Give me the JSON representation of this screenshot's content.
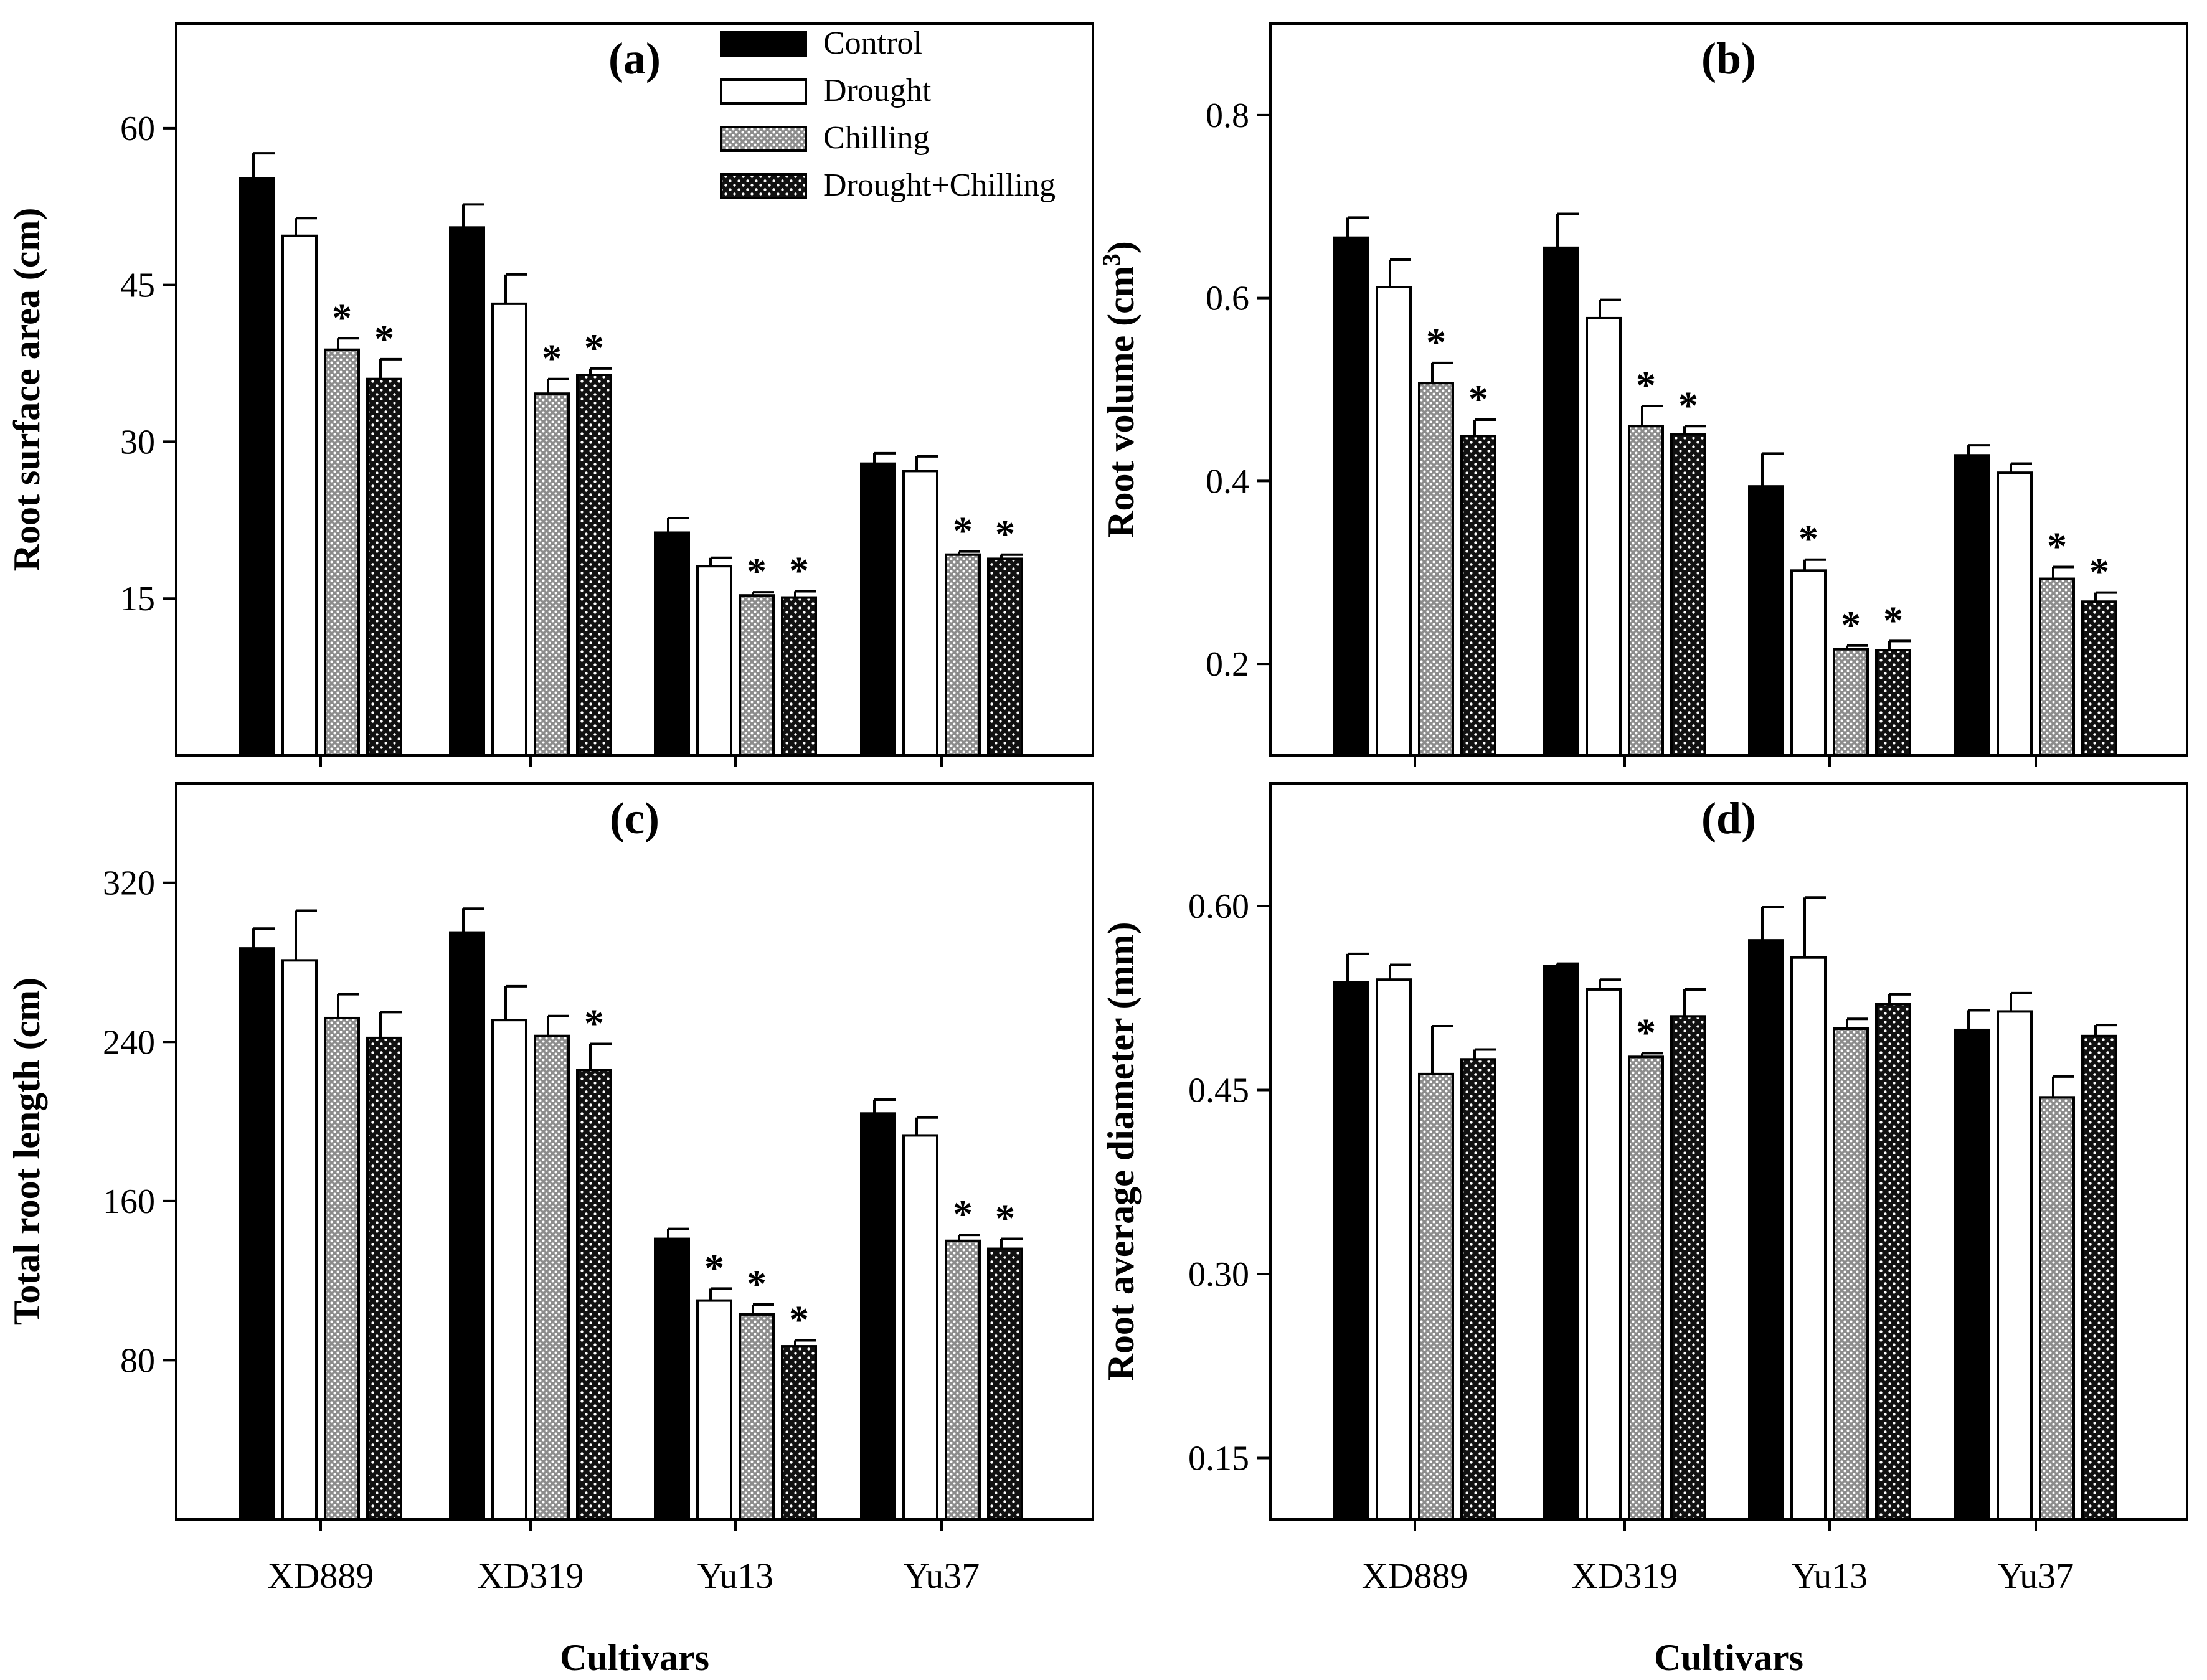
{
  "chart_data": [
    {
      "type": "bar",
      "panel_label": "(a)",
      "ylabel": "Root surface area (cm)",
      "xlabel": "",
      "ylim": [
        0,
        70
      ],
      "yticks": [
        15,
        30,
        45,
        60
      ],
      "ytick_labels": [
        "15",
        "30",
        "45",
        "60"
      ],
      "categories": [
        "XD889",
        "XD319",
        "Yu13",
        "Yu37"
      ],
      "series": [
        {
          "name": "Control",
          "values": [
            55.2,
            50.5,
            21.3,
            27.9
          ],
          "errors": [
            2.4,
            2.2,
            1.4,
            1.0
          ],
          "sig": [
            false,
            false,
            false,
            false
          ]
        },
        {
          "name": "Drought",
          "values": [
            49.7,
            43.2,
            18.1,
            27.2
          ],
          "errors": [
            1.7,
            2.8,
            0.8,
            1.4
          ],
          "sig": [
            false,
            false,
            false,
            false
          ]
        },
        {
          "name": "Chilling",
          "values": [
            38.8,
            34.6,
            15.3,
            19.2
          ],
          "errors": [
            1.1,
            1.4,
            0.3,
            0.3
          ],
          "sig": [
            true,
            true,
            true,
            true
          ]
        },
        {
          "name": "Drought+Chilling",
          "values": [
            36.0,
            36.4,
            15.1,
            18.8
          ],
          "errors": [
            1.9,
            0.6,
            0.6,
            0.4
          ],
          "sig": [
            true,
            true,
            true,
            true
          ]
        }
      ],
      "legend_location": "top"
    },
    {
      "type": "bar",
      "panel_label": "(b)",
      "ylabel": "Root volume (cm",
      "ylabel_sup": "3",
      "ylabel_end": ")",
      "xlabel": "",
      "ylim": [
        0.1,
        0.9
      ],
      "yticks": [
        0.2,
        0.4,
        0.6,
        0.8
      ],
      "ytick_labels": [
        "0.2",
        "0.4",
        "0.6",
        "0.8"
      ],
      "categories": [
        "XD889",
        "XD319",
        "Yu13",
        "Yu37"
      ],
      "series": [
        {
          "name": "Control",
          "values": [
            0.666,
            0.655,
            0.394,
            0.428
          ],
          "errors": [
            0.022,
            0.037,
            0.036,
            0.011
          ],
          "sig": [
            false,
            false,
            false,
            false
          ]
        },
        {
          "name": "Drought",
          "values": [
            0.612,
            0.578,
            0.302,
            0.409
          ],
          "errors": [
            0.03,
            0.02,
            0.012,
            0.01
          ],
          "sig": [
            false,
            false,
            true,
            false
          ]
        },
        {
          "name": "Chilling",
          "values": [
            0.507,
            0.46,
            0.216,
            0.293
          ],
          "errors": [
            0.022,
            0.022,
            0.004,
            0.013
          ],
          "sig": [
            true,
            true,
            true,
            true
          ]
        },
        {
          "name": "Drought+Chilling",
          "values": [
            0.449,
            0.451,
            0.215,
            0.268
          ],
          "errors": [
            0.018,
            0.009,
            0.01,
            0.01
          ],
          "sig": [
            true,
            true,
            true,
            true
          ]
        }
      ]
    },
    {
      "type": "bar",
      "panel_label": "(c)",
      "ylabel": "Total root length (cm)",
      "xlabel": "Cultivars",
      "ylim": [
        0,
        370
      ],
      "yticks": [
        80,
        160,
        240,
        320
      ],
      "ytick_labels": [
        "80",
        "160",
        "240",
        "320"
      ],
      "categories": [
        "XD889",
        "XD319",
        "Yu13",
        "Yu37"
      ],
      "series": [
        {
          "name": "Control",
          "values": [
            287,
            295,
            141,
            204
          ],
          "errors": [
            10,
            12,
            5,
            7
          ],
          "sig": [
            false,
            false,
            false,
            false
          ]
        },
        {
          "name": "Drought",
          "values": [
            281,
            251,
            110,
            193
          ],
          "errors": [
            25,
            17,
            6,
            9
          ],
          "sig": [
            false,
            false,
            true,
            false
          ]
        },
        {
          "name": "Chilling",
          "values": [
            252,
            243,
            103,
            140
          ],
          "errors": [
            12,
            10,
            5,
            3
          ],
          "sig": [
            false,
            false,
            true,
            true
          ]
        },
        {
          "name": "Drought+Chilling",
          "values": [
            242,
            226,
            87,
            136
          ],
          "errors": [
            13,
            13,
            3,
            5
          ],
          "sig": [
            false,
            true,
            true,
            true
          ]
        }
      ]
    },
    {
      "type": "bar",
      "panel_label": "(d)",
      "ylabel": "Root average diameter (mm)",
      "xlabel": "Cultivars",
      "ylim": [
        0.1,
        0.7
      ],
      "yticks": [
        0.15,
        0.3,
        0.45,
        0.6
      ],
      "ytick_labels": [
        "0.15",
        "0.30",
        "0.45",
        "0.60"
      ],
      "categories": [
        "XD889",
        "XD319",
        "Yu13",
        "Yu37"
      ],
      "series": [
        {
          "name": "Control",
          "values": [
            0.538,
            0.551,
            0.572,
            0.499
          ],
          "errors": [
            0.023,
            0.002,
            0.027,
            0.016
          ],
          "sig": [
            false,
            false,
            false,
            false
          ]
        },
        {
          "name": "Drought",
          "values": [
            0.54,
            0.532,
            0.558,
            0.514
          ],
          "errors": [
            0.012,
            0.008,
            0.049,
            0.015
          ],
          "sig": [
            false,
            false,
            false,
            false
          ]
        },
        {
          "name": "Chilling",
          "values": [
            0.463,
            0.477,
            0.5,
            0.444
          ],
          "errors": [
            0.039,
            0.003,
            0.008,
            0.017
          ],
          "sig": [
            false,
            true,
            false,
            false
          ]
        },
        {
          "name": "Drought+Chilling",
          "values": [
            0.475,
            0.51,
            0.52,
            0.494
          ],
          "errors": [
            0.008,
            0.022,
            0.008,
            0.009
          ],
          "sig": [
            false,
            false,
            false,
            false
          ]
        }
      ]
    }
  ],
  "legend": {
    "entries": [
      "Control",
      "Drought",
      "Chilling",
      "Drought+Chilling"
    ]
  },
  "significance_marker": "*",
  "colors": {
    "control_fill": "#000000",
    "drought_fill": "#ffffff",
    "chilling_fill": "#9a9a9a",
    "drought_chilling_fill": "#1a1a1a"
  }
}
